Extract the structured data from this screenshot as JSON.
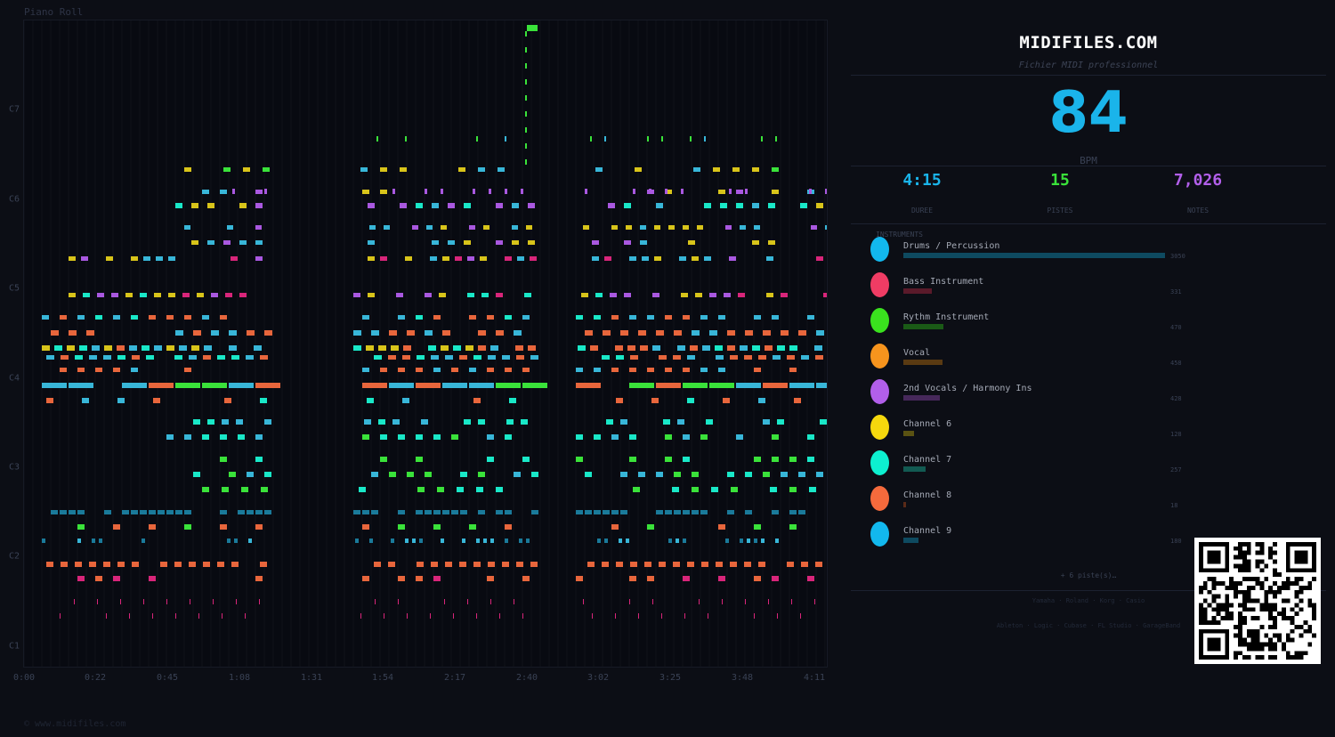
{
  "piano_roll": {
    "title": "Piano Roll",
    "pitch_labels": [
      "C7",
      "C6",
      "C5",
      "C4",
      "C3",
      "C2",
      "C1"
    ],
    "time_labels": [
      "0:00",
      "0:22",
      "0:45",
      "1:08",
      "1:31",
      "1:54",
      "2:17",
      "2:40",
      "3:02",
      "3:25",
      "3:48",
      "4:11"
    ],
    "copyright": "© www.midifiles.com"
  },
  "info": {
    "site": "MIDIFILES.COM",
    "subtitle": "Fichier MIDI professionnel",
    "bpm": "84",
    "bpm_label": "BPM",
    "stats": [
      {
        "value": "4:15",
        "label": "DUREE",
        "color": "#1ab4ea"
      },
      {
        "value": "15",
        "label": "PISTES",
        "color": "#3ae23a"
      },
      {
        "value": "7,026",
        "label": "NOTES",
        "color": "#b25fea"
      }
    ],
    "instruments_title": "INSTRUMENTS",
    "instruments": [
      {
        "name": "Drums / Percussion",
        "count": "3050",
        "notes": 3050,
        "color": "#12b8ee",
        "bar": "#0e4a60"
      },
      {
        "name": "Bass Instrument",
        "count": "331",
        "notes": 331,
        "color": "#f03c64",
        "bar": "#5a1a2a"
      },
      {
        "name": "Rythm Instrument",
        "count": "470",
        "notes": 470,
        "color": "#3ae21e",
        "bar": "#1a5a16"
      },
      {
        "name": "Vocal",
        "count": "458",
        "notes": 458,
        "color": "#f7941d",
        "bar": "#5a3a12"
      },
      {
        "name": "2nd Vocals / Harmony Ins",
        "count": "428",
        "notes": 428,
        "color": "#b25fea",
        "bar": "#46285a"
      },
      {
        "name": "Channel 6",
        "count": "128",
        "notes": 128,
        "color": "#f5d80d",
        "bar": "#5a5212"
      },
      {
        "name": "Channel 7",
        "count": "257",
        "notes": 257,
        "color": "#0df0d0",
        "bar": "#125a52"
      },
      {
        "name": "Channel 8",
        "count": "18",
        "notes": 18,
        "color": "#f56a3c",
        "bar": "#5a2a18"
      },
      {
        "name": "Channel 9",
        "count": "180",
        "notes": 180,
        "color": "#12b8ee",
        "bar": "#0e4a60"
      }
    ],
    "more": "+ 6 piste(s)…",
    "brands_1": "Yamaha · Roland · Korg · Casio",
    "brands_2": "Ableton · Logic · Cubase · FL Studio · GarageBand"
  }
}
